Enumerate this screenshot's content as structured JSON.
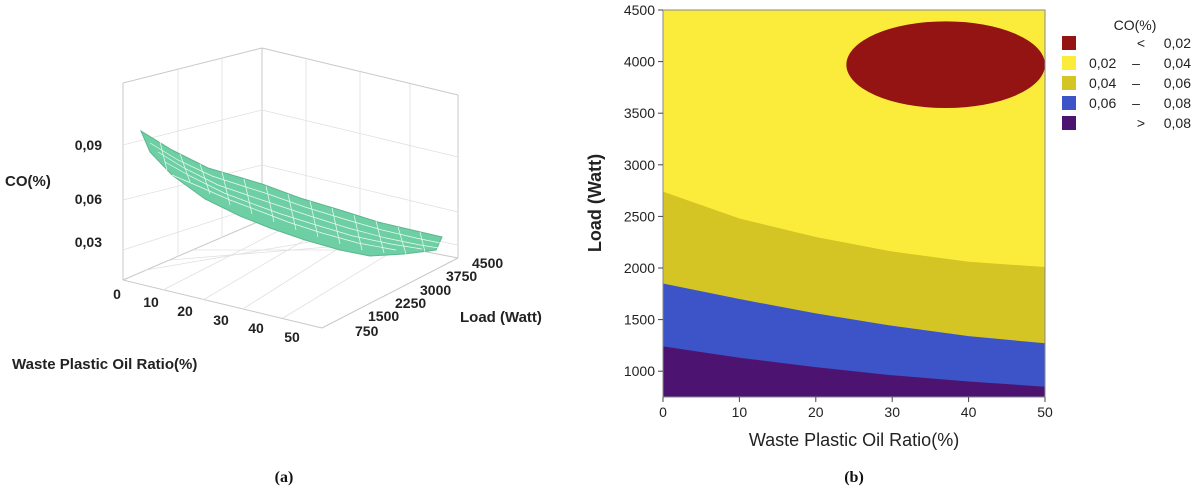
{
  "chart_data": [
    {
      "type": "surface",
      "caption": "(a)",
      "zlabel": "CO(%)",
      "xlabel": "Waste Plastic Oil Ratio(%)",
      "ylabel": "Load (Watt)",
      "x_ticks": [
        "0",
        "10",
        "20",
        "30",
        "40",
        "50"
      ],
      "y_ticks": [
        "750",
        "1500",
        "2250",
        "3000",
        "3750",
        "4500"
      ],
      "z_ticks": [
        "0,03",
        "0,06",
        "0,09"
      ],
      "surface_color": "#6fcfa4"
    },
    {
      "type": "contour",
      "caption": "(b)",
      "xlabel": "Waste Plastic Oil Ratio(%)",
      "ylabel": "Load (Watt)",
      "xlim": [
        0,
        50
      ],
      "ylim": [
        750,
        4500
      ],
      "x_ticks": [
        "0",
        "10",
        "20",
        "30",
        "40",
        "50"
      ],
      "y_ticks": [
        "1000",
        "1500",
        "2000",
        "2500",
        "3000",
        "3500",
        "4000",
        "4500"
      ],
      "legend_title": "CO(%)",
      "legend": [
        {
          "prefix": "<",
          "lo": "",
          "dash": "",
          "hi": "0,02",
          "color": "#941414"
        },
        {
          "prefix": "",
          "lo": "0,02",
          "dash": "–",
          "hi": "0,04",
          "color": "#fbec3c"
        },
        {
          "prefix": "",
          "lo": "0,04",
          "dash": "–",
          "hi": "0,06",
          "color": "#d4c424"
        },
        {
          "prefix": "",
          "lo": "0,06",
          "dash": "–",
          "hi": "0,08",
          "color": "#3c54c8"
        },
        {
          "prefix": ">",
          "lo": "",
          "dash": "",
          "hi": "0,08",
          "color": "#4c1470"
        }
      ],
      "boundaries": {
        "b08": [
          [
            0,
            1240
          ],
          [
            10,
            1130
          ],
          [
            20,
            1040
          ],
          [
            30,
            960
          ],
          [
            40,
            900
          ],
          [
            50,
            850
          ]
        ],
        "b06": [
          [
            0,
            1850
          ],
          [
            10,
            1700
          ],
          [
            20,
            1560
          ],
          [
            30,
            1440
          ],
          [
            40,
            1340
          ],
          [
            50,
            1270
          ]
        ],
        "b04": [
          [
            0,
            2740
          ],
          [
            10,
            2480
          ],
          [
            20,
            2300
          ],
          [
            30,
            2160
          ],
          [
            40,
            2060
          ],
          [
            50,
            2010
          ]
        ],
        "red_ellipse": {
          "cx": 37,
          "cy": 3970,
          "rx": 13,
          "ry": 420
        }
      }
    }
  ]
}
